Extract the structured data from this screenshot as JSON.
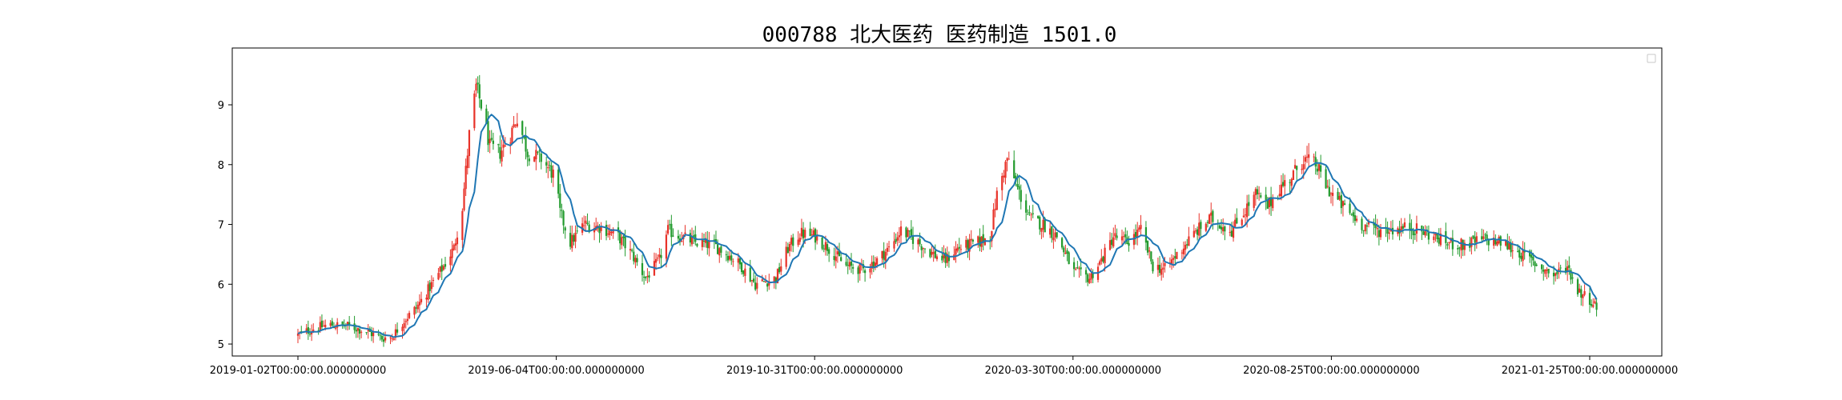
{
  "chart_data": {
    "type": "candlestick",
    "title": "000788 北大医药 医药制造 1501.0",
    "xlabel": "",
    "ylabel": "",
    "ylim": [
      4.8,
      9.95
    ],
    "yticks": [
      5,
      6,
      7,
      8,
      9
    ],
    "x_tick_labels": [
      "2019-01-02T00:00:00.000000000",
      "2019-06-04T00:00:00.000000000",
      "2019-10-31T00:00:00.000000000",
      "2020-03-30T00:00:00.000000000",
      "2020-08-25T00:00:00.000000000",
      "2021-01-25T00:00:00.000000000"
    ],
    "x_range": [
      "2019-01-02",
      "2021-01-25"
    ],
    "legend": "top-right (empty)",
    "grid": false,
    "up_color": "#e8332a",
    "down_color": "#239b2e",
    "ma_color": "#1f77b4",
    "approx_close_path": [
      [
        "2019-01-02",
        5.15
      ],
      [
        "2019-01-10",
        5.25
      ],
      [
        "2019-01-20",
        5.32
      ],
      [
        "2019-02-01",
        5.3
      ],
      [
        "2019-02-12",
        5.2
      ],
      [
        "2019-02-20",
        5.1
      ],
      [
        "2019-02-26",
        5.12
      ],
      [
        "2019-03-05",
        5.4
      ],
      [
        "2019-03-12",
        5.6
      ],
      [
        "2019-03-20",
        5.95
      ],
      [
        "2019-03-28",
        6.3
      ],
      [
        "2019-04-03",
        6.6
      ],
      [
        "2019-04-08",
        7.3
      ],
      [
        "2019-04-12",
        8.5
      ],
      [
        "2019-04-16",
        9.3
      ],
      [
        "2019-04-19",
        9.0
      ],
      [
        "2019-04-24",
        8.3
      ],
      [
        "2019-04-30",
        8.2
      ],
      [
        "2019-05-06",
        8.5
      ],
      [
        "2019-05-10",
        8.8
      ],
      [
        "2019-05-16",
        8.2
      ],
      [
        "2019-05-24",
        8.1
      ],
      [
        "2019-06-01",
        7.8
      ],
      [
        "2019-06-04",
        7.2
      ],
      [
        "2019-06-10",
        6.7
      ],
      [
        "2019-06-18",
        7.0
      ],
      [
        "2019-06-28",
        6.95
      ],
      [
        "2019-07-08",
        6.8
      ],
      [
        "2019-07-16",
        6.5
      ],
      [
        "2019-07-24",
        6.1
      ],
      [
        "2019-08-01",
        6.4
      ],
      [
        "2019-08-06",
        6.9
      ],
      [
        "2019-08-13",
        6.8
      ],
      [
        "2019-08-22",
        6.7
      ],
      [
        "2019-09-02",
        6.65
      ],
      [
        "2019-09-10",
        6.5
      ],
      [
        "2019-09-18",
        6.3
      ],
      [
        "2019-09-26",
        6.0
      ],
      [
        "2019-10-08",
        6.1
      ],
      [
        "2019-10-15",
        6.6
      ],
      [
        "2019-10-22",
        6.85
      ],
      [
        "2019-10-31",
        6.8
      ],
      [
        "2019-11-08",
        6.6
      ],
      [
        "2019-11-18",
        6.3
      ],
      [
        "2019-11-28",
        6.25
      ],
      [
        "2019-12-06",
        6.4
      ],
      [
        "2019-12-13",
        6.6
      ],
      [
        "2019-12-20",
        6.9
      ],
      [
        "2019-12-30",
        6.7
      ],
      [
        "2020-01-08",
        6.5
      ],
      [
        "2020-01-15",
        6.4
      ],
      [
        "2020-01-22",
        6.6
      ],
      [
        "2020-02-03",
        6.7
      ],
      [
        "2020-02-10",
        6.8
      ],
      [
        "2020-02-14",
        7.5
      ],
      [
        "2020-02-20",
        8.1
      ],
      [
        "2020-02-26",
        7.6
      ],
      [
        "2020-03-04",
        7.1
      ],
      [
        "2020-03-12",
        7.0
      ],
      [
        "2020-03-20",
        6.8
      ],
      [
        "2020-03-30",
        6.2
      ],
      [
        "2020-04-08",
        6.1
      ],
      [
        "2020-04-15",
        6.4
      ],
      [
        "2020-04-22",
        6.8
      ],
      [
        "2020-04-30",
        6.7
      ],
      [
        "2020-05-08",
        6.9
      ],
      [
        "2020-05-15",
        6.3
      ],
      [
        "2020-05-22",
        6.25
      ],
      [
        "2020-06-01",
        6.6
      ],
      [
        "2020-06-10",
        6.9
      ],
      [
        "2020-06-18",
        7.1
      ],
      [
        "2020-06-30",
        6.9
      ],
      [
        "2020-07-07",
        7.2
      ],
      [
        "2020-07-14",
        7.5
      ],
      [
        "2020-07-21",
        7.3
      ],
      [
        "2020-07-28",
        7.6
      ],
      [
        "2020-08-04",
        7.8
      ],
      [
        "2020-08-11",
        8.1
      ],
      [
        "2020-08-18",
        8.0
      ],
      [
        "2020-08-25",
        7.6
      ],
      [
        "2020-09-03",
        7.3
      ],
      [
        "2020-09-14",
        7.0
      ],
      [
        "2020-09-24",
        6.9
      ],
      [
        "2020-10-12",
        6.95
      ],
      [
        "2020-10-22",
        6.85
      ],
      [
        "2020-11-02",
        6.7
      ],
      [
        "2020-11-12",
        6.65
      ],
      [
        "2020-11-24",
        6.75
      ],
      [
        "2020-12-04",
        6.7
      ],
      [
        "2020-12-14",
        6.55
      ],
      [
        "2020-12-24",
        6.35
      ],
      [
        "2021-01-04",
        6.15
      ],
      [
        "2021-01-12",
        6.3
      ],
      [
        "2021-01-18",
        5.9
      ],
      [
        "2021-01-25",
        5.75
      ],
      [
        "2021-01-29",
        5.62
      ]
    ]
  }
}
